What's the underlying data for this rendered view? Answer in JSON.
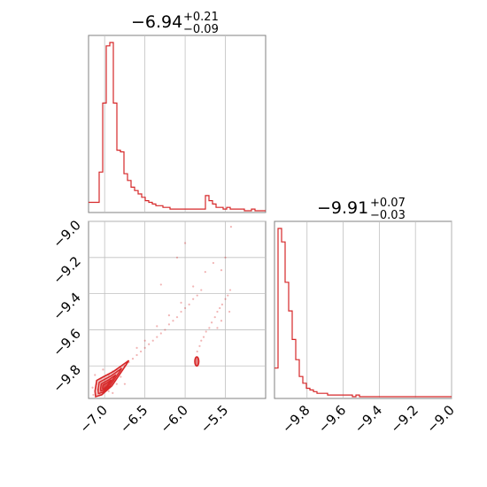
{
  "chart_data": [
    {
      "type": "histogram",
      "panel": "top-left",
      "title": {
        "value": "−6.94",
        "plus": "+0.21",
        "minus": "−0.09"
      },
      "xlim": [
        -7.2,
        -5.0
      ],
      "xticks": [
        -7.0,
        -6.5,
        -6.0,
        -5.5
      ],
      "grid": true,
      "color": "#d62728",
      "bins": {
        "start": -7.2,
        "width": 0.044,
        "values": [
          0.05,
          0.05,
          0.05,
          0.23,
          0.64,
          0.98,
          1.0,
          0.64,
          0.36,
          0.35,
          0.22,
          0.18,
          0.14,
          0.12,
          0.1,
          0.08,
          0.06,
          0.05,
          0.04,
          0.03,
          0.03,
          0.02,
          0.02,
          0.01,
          0.01,
          0.01,
          0.01,
          0.01,
          0.01,
          0.01,
          0.01,
          0.01,
          0.01,
          0.09,
          0.06,
          0.04,
          0.02,
          0.02,
          0.01,
          0.02,
          0.01,
          0.01,
          0.01,
          0.01,
          0.0,
          0.0,
          0.01,
          0.0,
          0.0,
          0.0
        ]
      }
    },
    {
      "type": "histogram",
      "panel": "bottom-right",
      "title": {
        "value": "−9.91",
        "plus": "+0.07",
        "minus": "−0.03"
      },
      "xlim": [
        -9.98,
        -9.0
      ],
      "xticks": [
        -9.8,
        -9.6,
        -9.4,
        -9.2,
        -9.0
      ],
      "xtick_labels": [
        "−9.8",
        "−9.6",
        "−9.4",
        "−9.2",
        "−9.0"
      ],
      "grid": true,
      "color": "#d62728",
      "bins": {
        "start": -9.98,
        "width": 0.0196,
        "values": [
          0.17,
          1.0,
          0.92,
          0.68,
          0.51,
          0.34,
          0.22,
          0.12,
          0.08,
          0.05,
          0.04,
          0.03,
          0.02,
          0.02,
          0.02,
          0.01,
          0.01,
          0.01,
          0.01,
          0.01,
          0.01,
          0.01,
          0.0,
          0.01,
          0.0,
          0.0,
          0.0,
          0.0,
          0.0,
          0.0,
          0.0,
          0.0,
          0.0,
          0.0,
          0.0,
          0.0,
          0.0,
          0.0,
          0.0,
          0.0,
          0.0,
          0.0,
          0.0,
          0.0,
          0.0,
          0.0,
          0.0,
          0.0,
          0.0,
          0.0
        ]
      }
    },
    {
      "type": "scatter",
      "panel": "bottom-left",
      "xlim": [
        -7.2,
        -5.0
      ],
      "ylim": [
        -9.98,
        -9.0
      ],
      "xticks": [
        -7.0,
        -6.5,
        -6.0,
        -5.5
      ],
      "xtick_labels": [
        "−7.0",
        "−6.5",
        "−6.0",
        "−5.5"
      ],
      "yticks": [
        -9.0,
        -9.2,
        -9.4,
        -9.6,
        -9.8
      ],
      "ytick_labels": [
        "−9.0",
        "−9.2",
        "−9.4",
        "−9.6",
        "−9.8"
      ],
      "grid": true,
      "color": "#d62728",
      "points": [
        [
          -6.95,
          -9.85
        ],
        [
          -6.9,
          -9.83
        ],
        [
          -6.85,
          -9.82
        ],
        [
          -6.8,
          -9.81
        ],
        [
          -6.75,
          -9.8
        ],
        [
          -6.7,
          -9.78
        ],
        [
          -6.65,
          -9.76
        ],
        [
          -6.6,
          -9.74
        ],
        [
          -6.55,
          -9.72
        ],
        [
          -6.5,
          -9.7
        ],
        [
          -6.45,
          -9.68
        ],
        [
          -6.4,
          -9.66
        ],
        [
          -6.35,
          -9.64
        ],
        [
          -6.3,
          -9.62
        ],
        [
          -6.25,
          -9.6
        ],
        [
          -6.2,
          -9.57
        ],
        [
          -6.15,
          -9.55
        ],
        [
          -6.1,
          -9.53
        ],
        [
          -6.05,
          -9.5
        ],
        [
          -6.0,
          -9.48
        ],
        [
          -5.95,
          -9.46
        ],
        [
          -5.9,
          -9.43
        ],
        [
          -5.85,
          -9.41
        ],
        [
          -5.8,
          -9.38
        ],
        [
          -6.6,
          -9.7
        ],
        [
          -6.5,
          -9.66
        ],
        [
          -6.35,
          -9.58
        ],
        [
          -6.2,
          -9.52
        ],
        [
          -6.05,
          -9.45
        ],
        [
          -5.9,
          -9.36
        ],
        [
          -5.75,
          -9.28
        ],
        [
          -5.65,
          -9.23
        ],
        [
          -5.85,
          -9.72
        ],
        [
          -5.82,
          -9.69
        ],
        [
          -5.8,
          -9.66
        ],
        [
          -5.77,
          -9.64
        ],
        [
          -5.74,
          -9.61
        ],
        [
          -5.7,
          -9.59
        ],
        [
          -5.67,
          -9.56
        ],
        [
          -5.63,
          -9.53
        ],
        [
          -5.6,
          -9.5
        ],
        [
          -5.57,
          -9.48
        ],
        [
          -5.54,
          -9.46
        ],
        [
          -5.5,
          -9.43
        ],
        [
          -5.47,
          -9.41
        ],
        [
          -5.44,
          -9.38
        ],
        [
          -5.6,
          -9.59
        ],
        [
          -5.55,
          -9.55
        ],
        [
          -5.45,
          -9.5
        ],
        [
          -5.43,
          -9.03
        ],
        [
          -5.5,
          -9.2
        ],
        [
          -5.55,
          -9.27
        ],
        [
          -6.0,
          -9.12
        ],
        [
          -6.1,
          -9.2
        ],
        [
          -6.3,
          -9.35
        ],
        [
          -7.05,
          -9.87
        ],
        [
          -7.1,
          -9.9
        ],
        [
          -7.08,
          -9.93
        ],
        [
          -7.0,
          -9.92
        ],
        [
          -6.95,
          -9.94
        ],
        [
          -7.12,
          -9.85
        ],
        [
          -7.02,
          -9.82
        ],
        [
          -6.92,
          -9.88
        ],
        [
          -6.85,
          -9.9
        ],
        [
          -7.15,
          -9.92
        ],
        [
          -6.8,
          -9.86
        ],
        [
          -7.06,
          -9.96
        ],
        [
          -6.9,
          -9.95
        ],
        [
          -7.14,
          -9.96
        ],
        [
          -6.75,
          -9.9
        ]
      ],
      "contour_regions": [
        {
          "label": "main",
          "x_range": [
            -7.12,
            -6.7
          ],
          "y_range": [
            -9.97,
            -9.77
          ]
        },
        {
          "label": "secondary",
          "x_range": [
            -5.88,
            -5.83
          ],
          "y_range": [
            -9.8,
            -9.75
          ]
        }
      ]
    }
  ]
}
